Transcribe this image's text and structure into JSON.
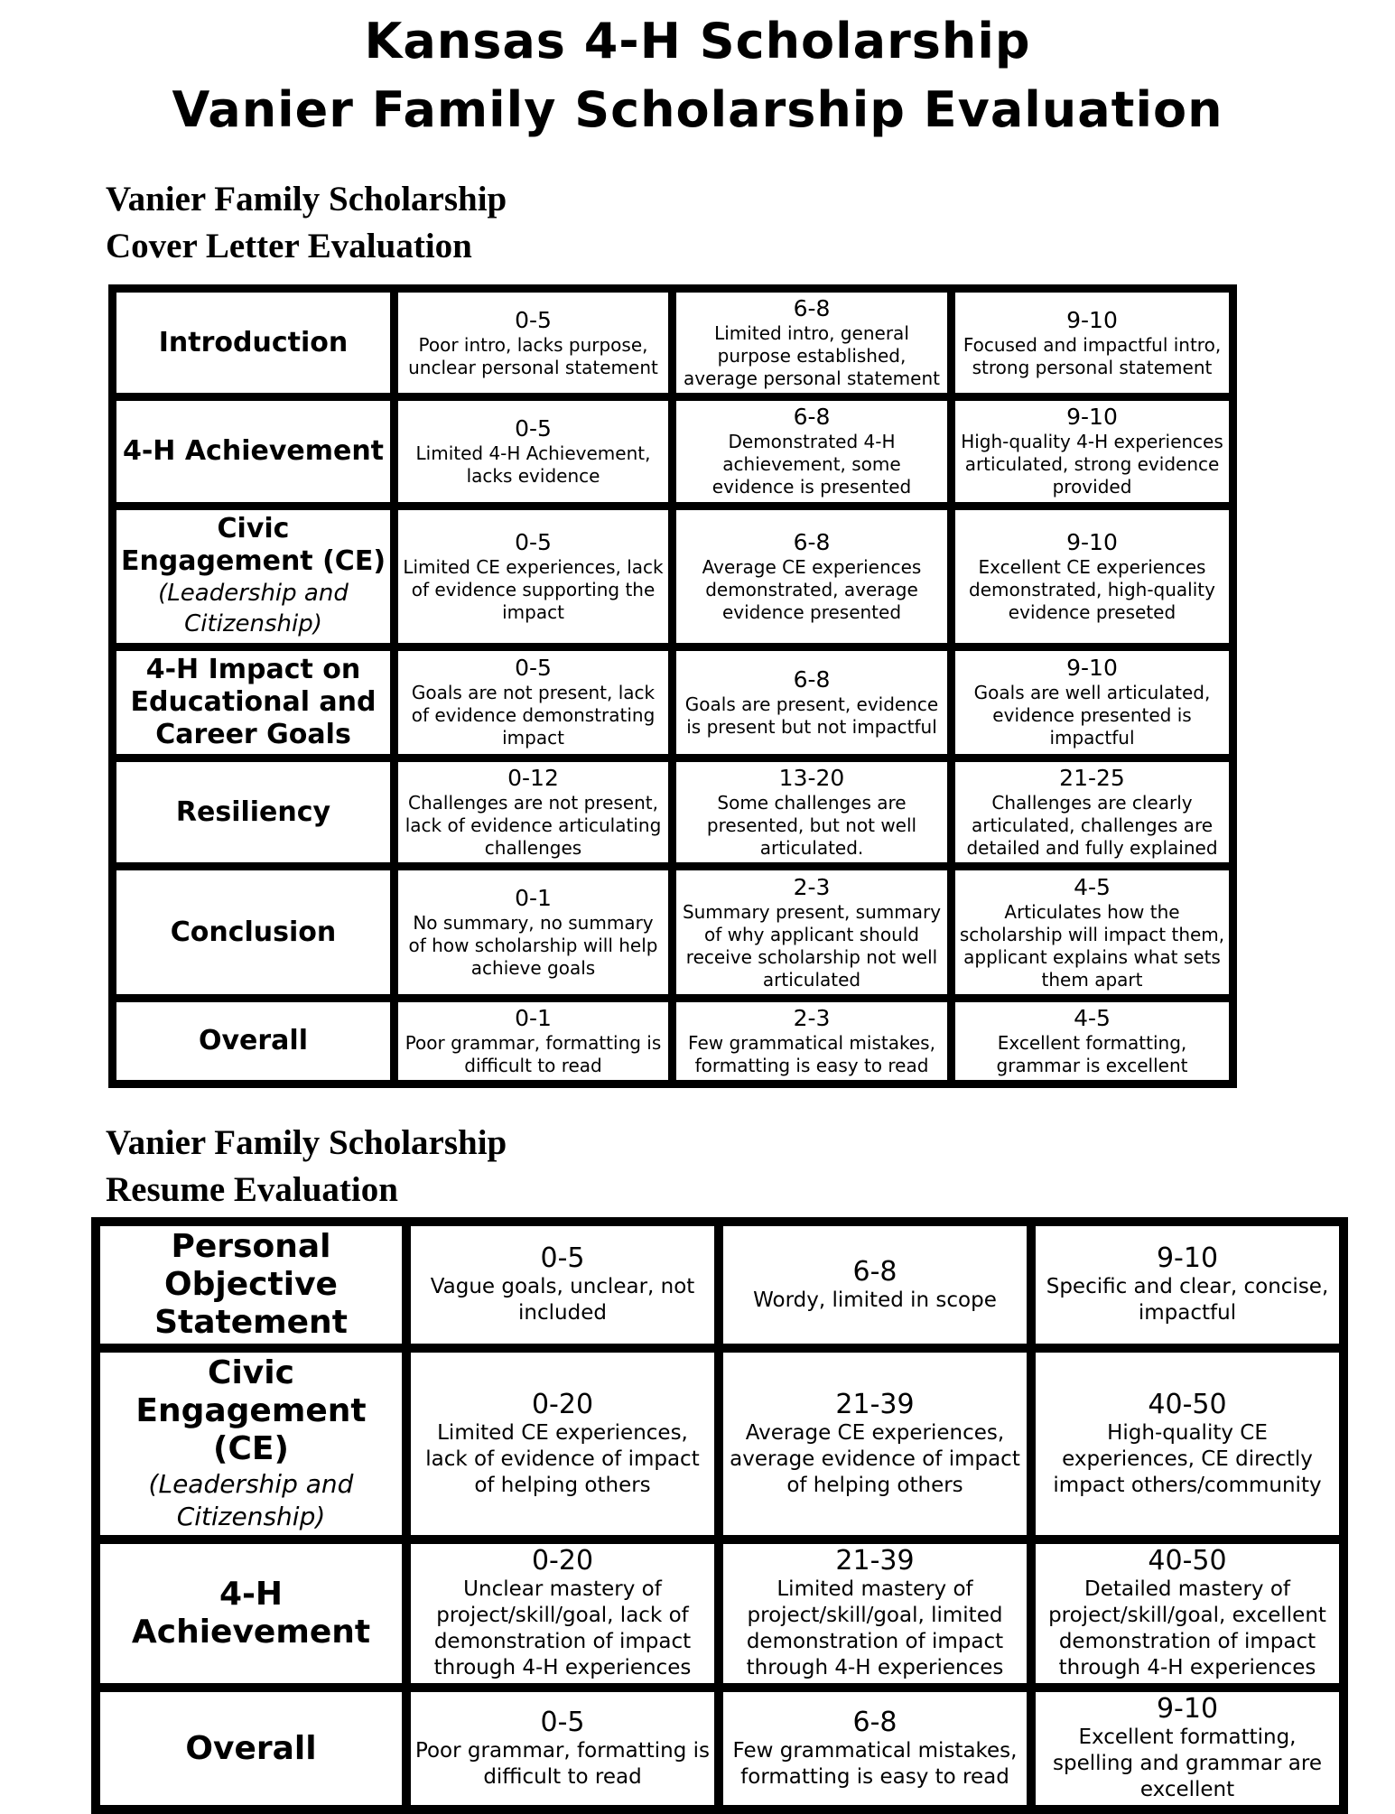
{
  "header": {
    "title": [
      "Kansas 4-H Scholarship",
      "Vanier Family Scholarship Evaluation"
    ]
  },
  "sections": [
    {
      "heading": [
        "Vanier Family Scholarship",
        "Cover Letter Evaluation"
      ],
      "rows": [
        {
          "label": "Introduction",
          "cells": [
            {
              "score": "0-5",
              "desc": "Poor intro, lacks purpose, unclear personal statement"
            },
            {
              "score": "6-8",
              "desc": "Limited intro, general purpose established, average personal statement"
            },
            {
              "score": "9-10",
              "desc": "Focused and impactful intro, strong personal statement"
            }
          ]
        },
        {
          "label": "4-H Achievement",
          "cells": [
            {
              "score": "0-5",
              "desc": "Limited 4-H Achievement, lacks evidence"
            },
            {
              "score": "6-8",
              "desc": "Demonstrated 4-H achievement, some evidence is presented"
            },
            {
              "score": "9-10",
              "desc": "High-quality 4-H experiences articulated, strong evidence provided"
            }
          ]
        },
        {
          "label": "Civic Engagement (CE)",
          "sublabel": "(Leadership and Citizenship)",
          "cells": [
            {
              "score": "0-5",
              "desc": "Limited CE experiences, lack of evidence supporting the impact"
            },
            {
              "score": "6-8",
              "desc": "Average CE experiences demonstrated, average evidence presented"
            },
            {
              "score": "9-10",
              "desc": "Excellent CE experiences demonstrated, high-quality evidence preseted"
            }
          ]
        },
        {
          "label": "4-H Impact on Educational and Career Goals",
          "cells": [
            {
              "score": "0-5",
              "desc": "Goals are not present, lack of evidence demonstrating impact"
            },
            {
              "score": "6-8",
              "desc": "Goals are present, evidence is present but not impactful"
            },
            {
              "score": "9-10",
              "desc": "Goals are well articulated, evidence presented is impactful"
            }
          ]
        },
        {
          "label": "Resiliency",
          "cells": [
            {
              "score": "0-12",
              "desc": "Challenges are not present, lack of evidence articulating challenges"
            },
            {
              "score": "13-20",
              "desc": "Some challenges are presented, but not well articulated."
            },
            {
              "score": "21-25",
              "desc": "Challenges are clearly articulated, challenges are detailed and fully explained"
            }
          ]
        },
        {
          "label": "Conclusion",
          "cells": [
            {
              "score": "0-1",
              "desc": "No summary, no summary of how scholarship will help achieve goals"
            },
            {
              "score": "2-3",
              "desc": "Summary present, summary of why applicant should receive scholarship not well articulated"
            },
            {
              "score": "4-5",
              "desc": "Articulates how the scholarship will impact them, applicant explains what sets them apart"
            }
          ]
        },
        {
          "label": "Overall",
          "cells": [
            {
              "score": "0-1",
              "desc": "Poor grammar, formatting is difficult to read"
            },
            {
              "score": "2-3",
              "desc": "Few grammatical mistakes, formatting is easy to read"
            },
            {
              "score": "4-5",
              "desc": "Excellent formatting, grammar is excellent"
            }
          ]
        }
      ]
    },
    {
      "heading": [
        "Vanier Family Scholarship",
        "Resume Evaluation"
      ],
      "rows": [
        {
          "label": "Personal Objective Statement",
          "cells": [
            {
              "score": "0-5",
              "desc": "Vague goals, unclear, not included"
            },
            {
              "score": "6-8",
              "desc": "Wordy, limited in scope"
            },
            {
              "score": "9-10",
              "desc": "Specific and clear, concise, impactful"
            }
          ]
        },
        {
          "label": "Civic Engagement (CE)",
          "sublabel": "(Leadership and Citizenship)",
          "cells": [
            {
              "score": "0-20",
              "desc": "Limited CE experiences, lack of evidence of impact of helping others"
            },
            {
              "score": "21-39",
              "desc": "Average CE experiences, average evidence of impact of helping others"
            },
            {
              "score": "40-50",
              "desc": "High-quality CE experiences, CE directly impact others/community"
            }
          ]
        },
        {
          "label": "4-H Achievement",
          "cells": [
            {
              "score": "0-20",
              "desc": "Unclear mastery of project/skill/goal, lack of demonstration of impact through 4-H experiences"
            },
            {
              "score": "21-39",
              "desc": "Limited mastery of project/skill/goal, limited demonstration of impact through 4-H experiences"
            },
            {
              "score": "40-50",
              "desc": "Detailed mastery of project/skill/goal, excellent demonstration of impact through 4-H experiences"
            }
          ]
        },
        {
          "label": "Overall",
          "cells": [
            {
              "score": "0-5",
              "desc": "Poor grammar, formatting is difficult to read"
            },
            {
              "score": "6-8",
              "desc": "Few grammatical mistakes, formatting is easy to read"
            },
            {
              "score": "9-10",
              "desc": "Excellent formatting, spelling and grammar are excellent"
            }
          ]
        }
      ]
    }
  ]
}
